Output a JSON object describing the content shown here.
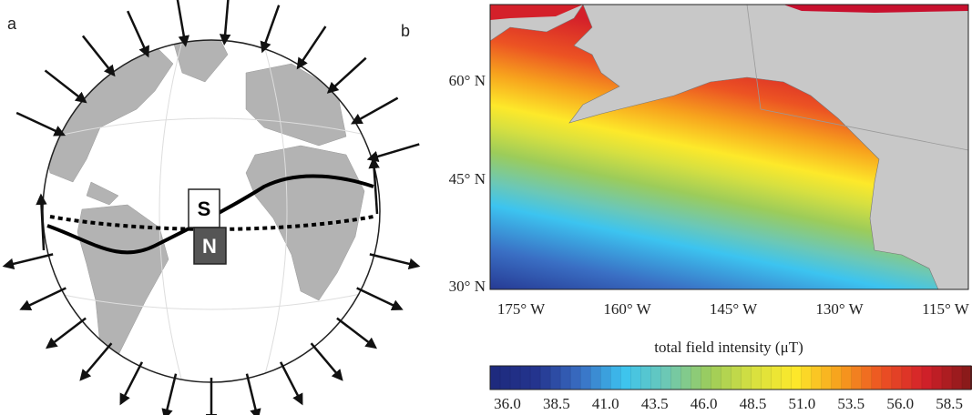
{
  "panels": {
    "a": "a",
    "b": "b"
  },
  "magnet": {
    "south": "S",
    "north": "N"
  },
  "map": {
    "lat_labels": [
      "60° N",
      "45° N",
      "30° N"
    ],
    "lon_labels": [
      "175° W",
      "160° W",
      "145° W",
      "130° W",
      "115° W"
    ]
  },
  "colorbar": {
    "label": "total field intensity (μT)",
    "ticks": [
      "36.0",
      "38.5",
      "41.0",
      "43.5",
      "46.0",
      "48.5",
      "51.0",
      "53.5",
      "56.0",
      "58.5"
    ]
  }
}
